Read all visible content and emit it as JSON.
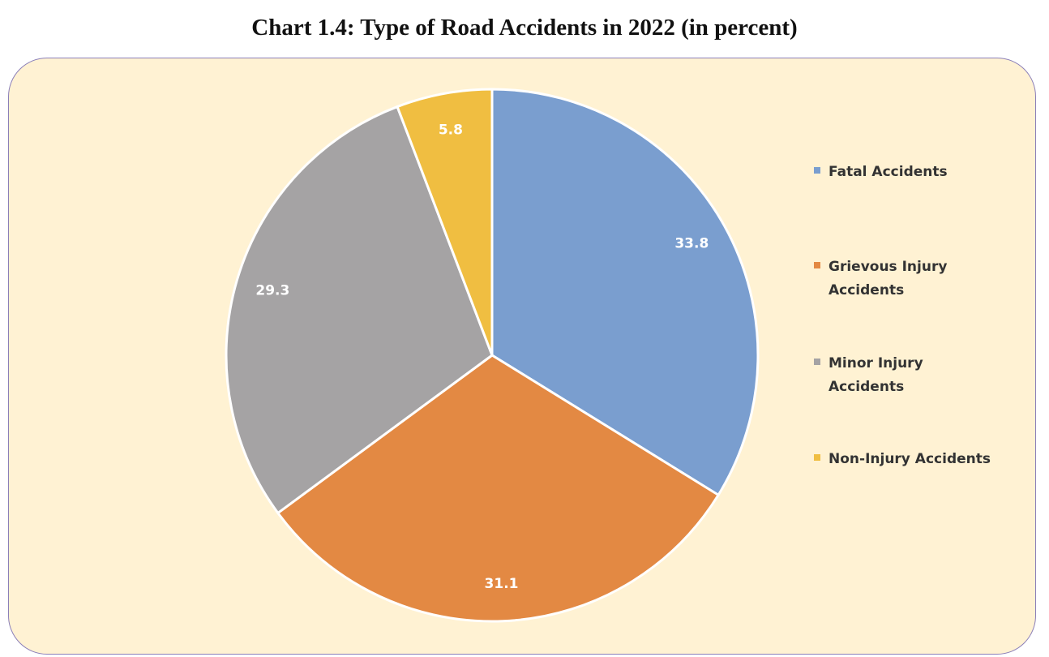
{
  "chart_data": {
    "type": "pie",
    "title": "Chart 1.4: Type of Road Accidents in 2022 (in percent)",
    "legend_position": "right",
    "slices": [
      {
        "name": "Fatal Accidents",
        "value": 33.8,
        "label": "33.8",
        "color": "#7a9ecf"
      },
      {
        "name": "Grievous Injury Accidents",
        "value": 31.1,
        "label": "31.1",
        "color": "#e38943"
      },
      {
        "name": "Minor Injury Accidents",
        "value": 29.3,
        "label": "29.3",
        "color": "#a5a3a4"
      },
      {
        "name": "Non-Injury Accidents",
        "value": 5.8,
        "label": "5.8",
        "color": "#f0be41"
      }
    ]
  },
  "legend": {
    "items": [
      {
        "label": "Fatal Accidents"
      },
      {
        "label": "Grievous Injury Accidents"
      },
      {
        "label": "Minor Injury Accidents"
      },
      {
        "label": "Non-Injury Accidents"
      }
    ]
  },
  "colors": {
    "panel_background": "#fff2d3",
    "panel_border": "#8b7fb8"
  }
}
